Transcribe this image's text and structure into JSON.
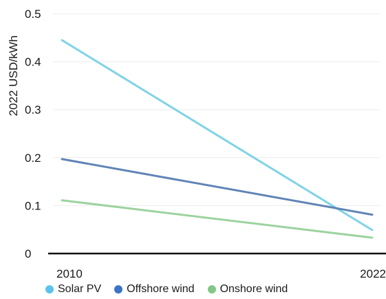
{
  "chart_data": {
    "type": "line",
    "title": "",
    "xlabel": "",
    "ylabel": "2022 USD/kWh",
    "x": [
      "2010",
      "2022"
    ],
    "x_tick_labels": [
      "2010",
      "2022"
    ],
    "ylim": [
      0,
      0.5
    ],
    "y_ticks": [
      0,
      0.1,
      0.2,
      0.3,
      0.4,
      0.5
    ],
    "y_tick_labels": [
      "0",
      "0.1",
      "0.2",
      "0.3",
      "0.4",
      "0.5"
    ],
    "grid": true,
    "legend_position": "bottom",
    "series": [
      {
        "name": "Solar PV",
        "values": [
          0.445,
          0.049
        ],
        "color": "#7fd3e6",
        "legend_color": "#5bc4ec"
      },
      {
        "name": "Offshore wind",
        "values": [
          0.197,
          0.081
        ],
        "color": "#5f84b6",
        "legend_color": "#3a74c4"
      },
      {
        "name": "Onshore wind",
        "values": [
          0.111,
          0.033
        ],
        "color": "#9cd39e",
        "legend_color": "#80c887"
      }
    ]
  }
}
